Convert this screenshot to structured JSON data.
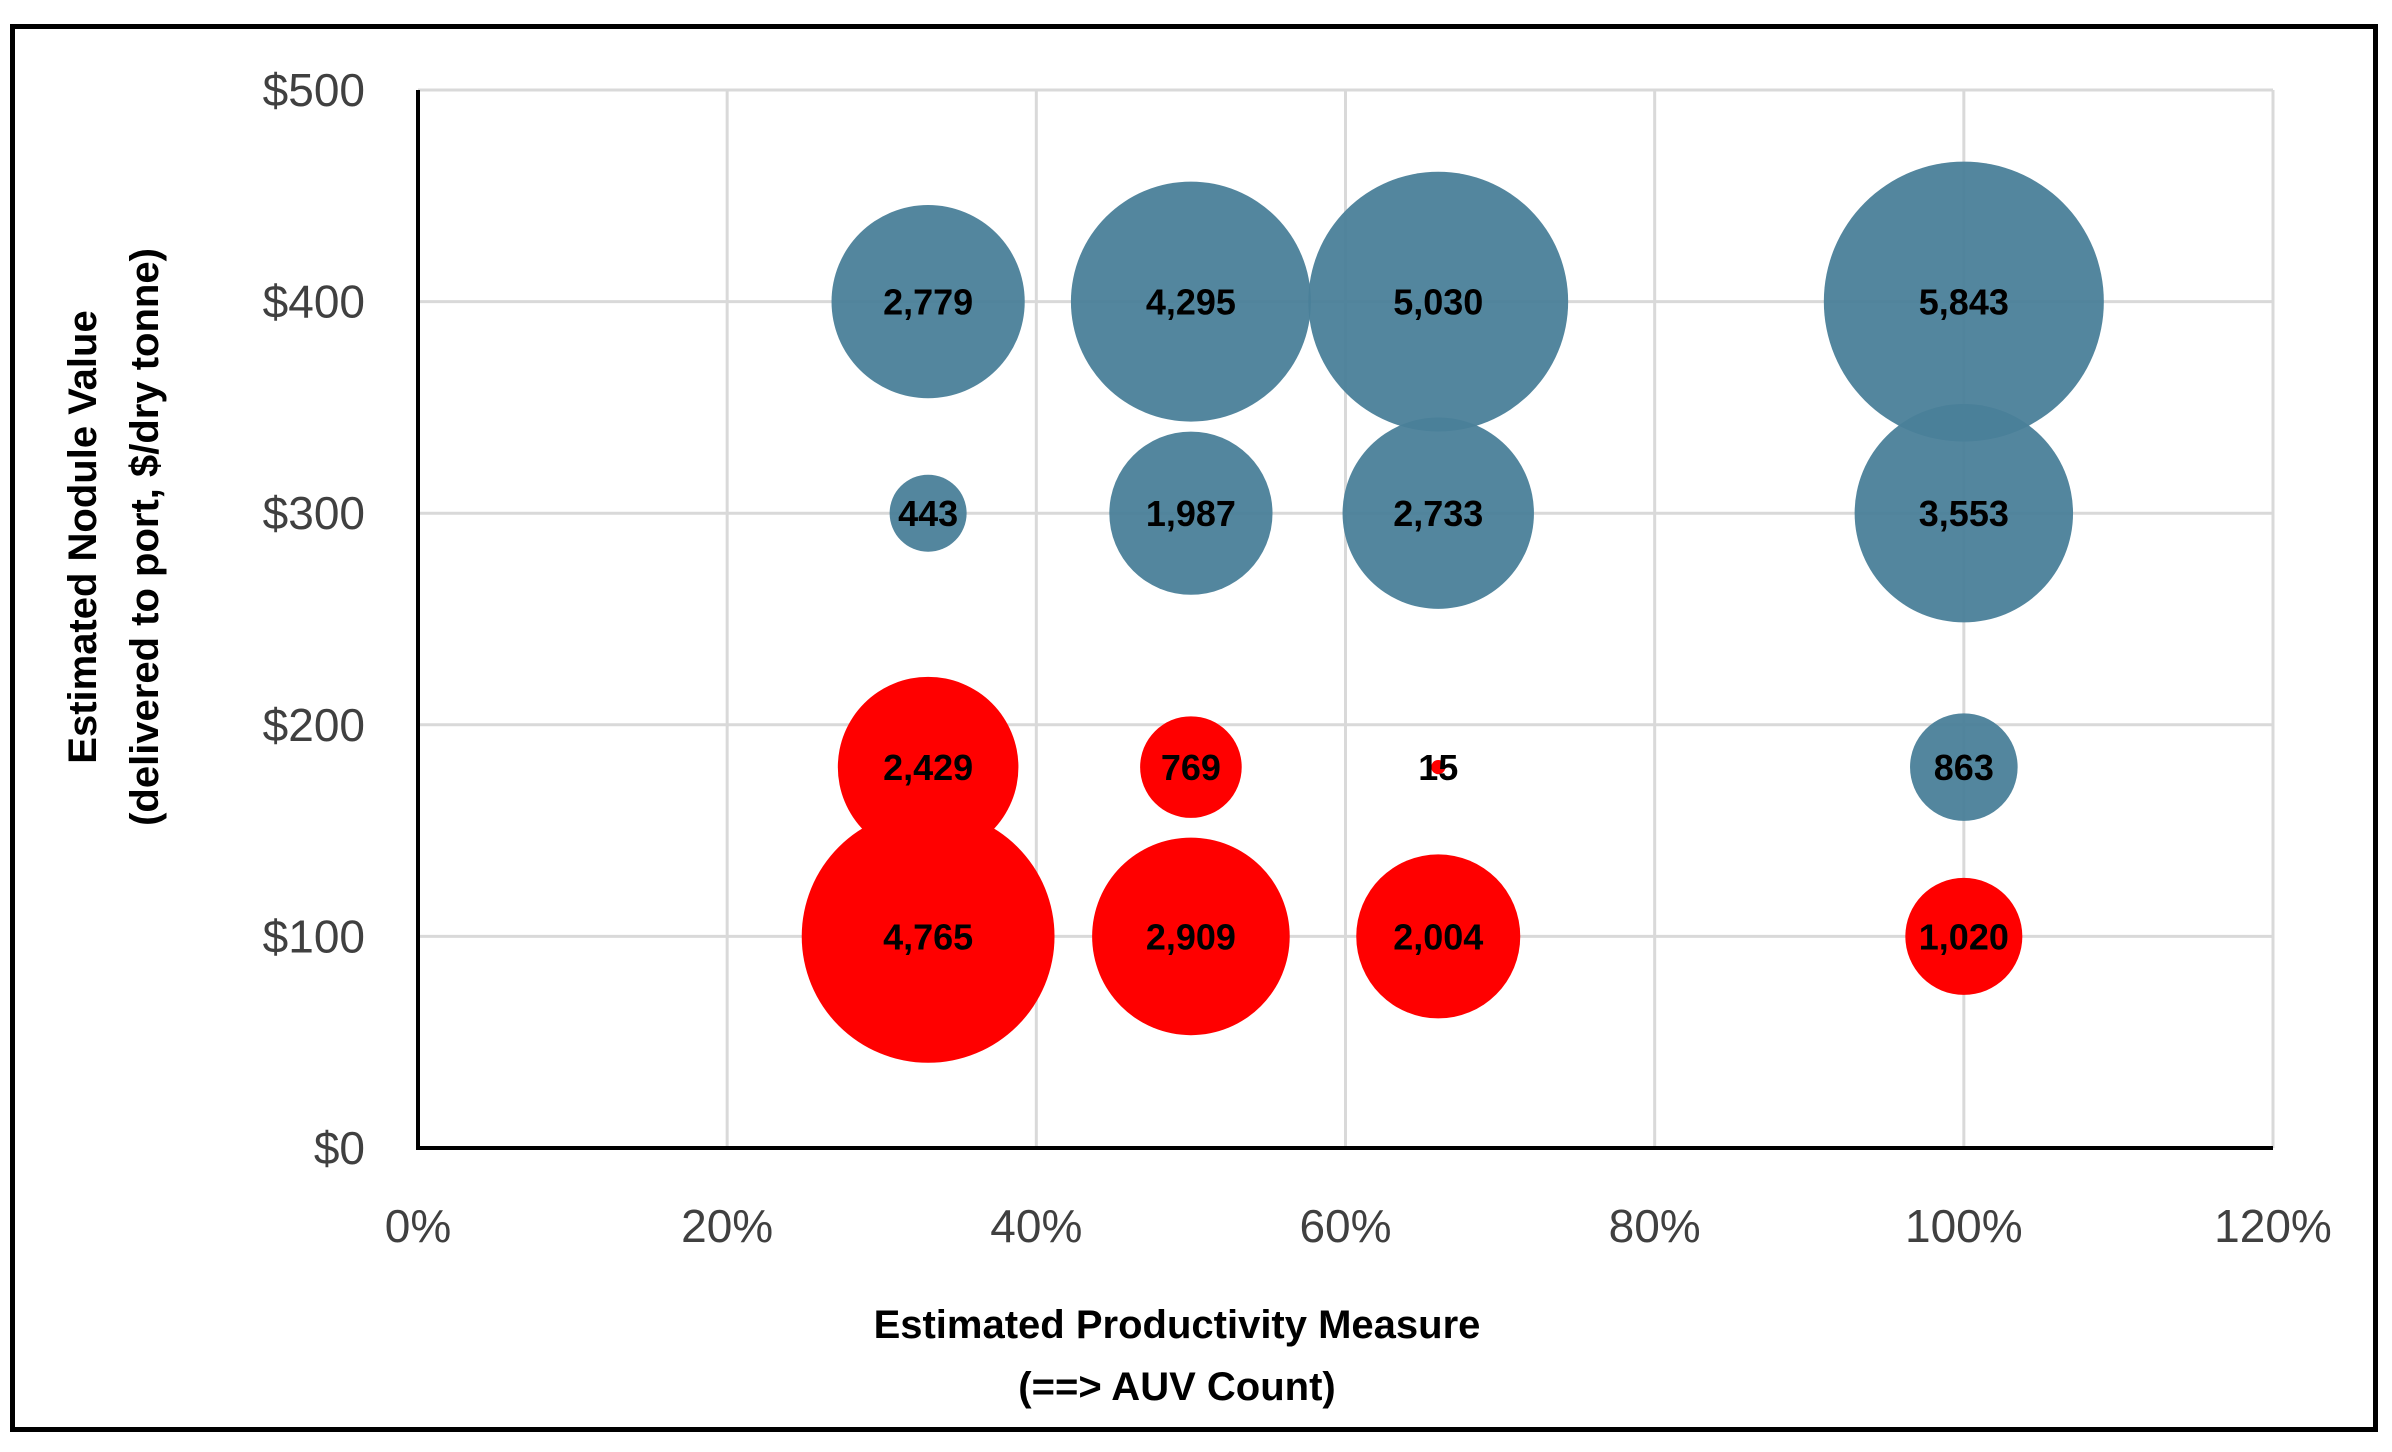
{
  "chart_data": {
    "type": "bubble",
    "title": "",
    "xlabel_line1": "Estimated Productivity Measure",
    "xlabel_line2": "(==> AUV Count)",
    "ylabel_line1": "Estimated Nodule Value",
    "ylabel_line2": "(delivered to port, $/dry tonne)",
    "xlim": [
      0,
      120
    ],
    "ylim": [
      0,
      500
    ],
    "x_ticks": [
      "0%",
      "20%",
      "40%",
      "60%",
      "80%",
      "100%",
      "120%"
    ],
    "y_ticks": [
      "$0",
      "$100",
      "$200",
      "$300",
      "$400",
      "$500"
    ],
    "grid": true,
    "legend": "none",
    "colors": {
      "positive": "#4a7f99",
      "negative": "#ff0000"
    },
    "points": [
      {
        "x": 33,
        "y": 400,
        "size": 2779,
        "label": "2,779",
        "color": "positive"
      },
      {
        "x": 50,
        "y": 400,
        "size": 4295,
        "label": "4,295",
        "color": "positive"
      },
      {
        "x": 66,
        "y": 400,
        "size": 5030,
        "label": "5,030",
        "color": "positive"
      },
      {
        "x": 100,
        "y": 400,
        "size": 5843,
        "label": "5,843",
        "color": "positive"
      },
      {
        "x": 33,
        "y": 300,
        "size": 443,
        "label": "443",
        "color": "positive"
      },
      {
        "x": 50,
        "y": 300,
        "size": 1987,
        "label": "1,987",
        "color": "positive"
      },
      {
        "x": 66,
        "y": 300,
        "size": 2733,
        "label": "2,733",
        "color": "positive"
      },
      {
        "x": 100,
        "y": 300,
        "size": 3553,
        "label": "3,553",
        "color": "positive"
      },
      {
        "x": 33,
        "y": 180,
        "size": 2429,
        "label": "2,429",
        "color": "negative"
      },
      {
        "x": 50,
        "y": 180,
        "size": 769,
        "label": "769",
        "color": "negative"
      },
      {
        "x": 66,
        "y": 180,
        "size": 15,
        "label": "15",
        "color": "negative"
      },
      {
        "x": 100,
        "y": 180,
        "size": 863,
        "label": "863",
        "color": "positive"
      },
      {
        "x": 33,
        "y": 100,
        "size": 4765,
        "label": "4,765",
        "color": "negative"
      },
      {
        "x": 50,
        "y": 100,
        "size": 2909,
        "label": "2,909",
        "color": "negative"
      },
      {
        "x": 66,
        "y": 100,
        "size": 2004,
        "label": "2,004",
        "color": "negative"
      },
      {
        "x": 100,
        "y": 100,
        "size": 1020,
        "label": "1,020",
        "color": "negative"
      }
    ]
  }
}
